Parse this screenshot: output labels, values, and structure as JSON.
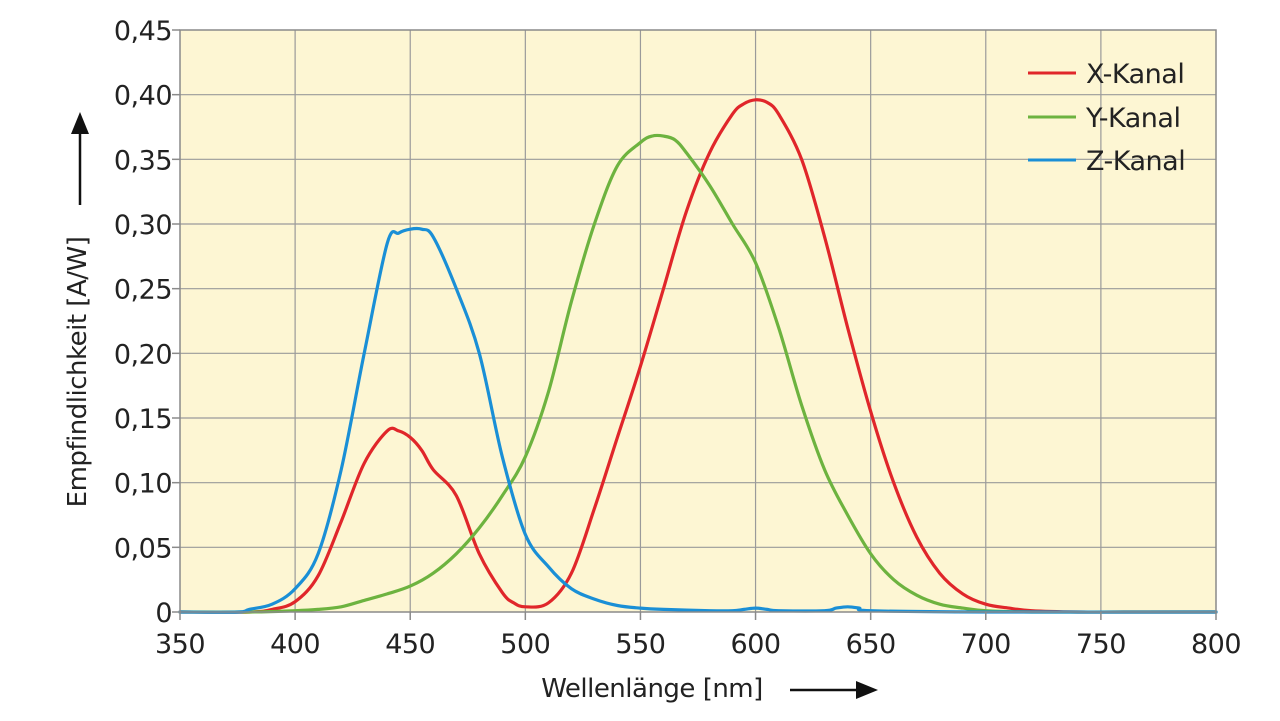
{
  "chart_data": {
    "type": "line",
    "title": "",
    "xlabel": "Wellenlänge [nm]",
    "ylabel": "Empfindlichkeit [A/W]",
    "xlim": [
      350,
      800
    ],
    "ylim": [
      0,
      0.45
    ],
    "x_ticks": [
      350,
      400,
      450,
      500,
      550,
      600,
      650,
      700,
      750,
      800
    ],
    "x_tick_labels": [
      "350",
      "400",
      "450",
      "500",
      "550",
      "600",
      "650",
      "700",
      "750",
      "800"
    ],
    "y_ticks": [
      0,
      0.05,
      0.1,
      0.15,
      0.2,
      0.25,
      0.3,
      0.35,
      0.4,
      0.45
    ],
    "y_tick_labels": [
      "0",
      "0,05",
      "0,10",
      "0,15",
      "0,20",
      "0,25",
      "0,30",
      "0,35",
      "0,40",
      "0,45"
    ],
    "grid": true,
    "background_color": "#fdf6d3",
    "grid_color": "#9a9a9a",
    "legend_position": "top-right",
    "series": [
      {
        "name": "X-Kanal",
        "color": "#e0262a",
        "x": [
          350,
          380,
          390,
          400,
          410,
          420,
          430,
          440,
          445,
          450,
          455,
          460,
          470,
          480,
          490,
          495,
          500,
          510,
          520,
          530,
          540,
          550,
          560,
          570,
          580,
          590,
          595,
          600,
          605,
          610,
          620,
          630,
          640,
          650,
          660,
          670,
          680,
          690,
          700,
          710,
          720,
          740,
          760,
          800
        ],
        "y": [
          0,
          0,
          0.002,
          0.008,
          0.028,
          0.07,
          0.115,
          0.14,
          0.14,
          0.135,
          0.125,
          0.11,
          0.09,
          0.045,
          0.015,
          0.007,
          0.004,
          0.007,
          0.03,
          0.08,
          0.135,
          0.19,
          0.25,
          0.31,
          0.355,
          0.385,
          0.393,
          0.396,
          0.394,
          0.385,
          0.35,
          0.29,
          0.22,
          0.155,
          0.1,
          0.058,
          0.03,
          0.014,
          0.006,
          0.003,
          0.001,
          0,
          0,
          0
        ]
      },
      {
        "name": "Y-Kanal",
        "color": "#6db33f",
        "x": [
          350,
          380,
          400,
          410,
          420,
          430,
          440,
          450,
          460,
          470,
          480,
          490,
          500,
          510,
          520,
          530,
          540,
          550,
          555,
          560,
          565,
          570,
          580,
          590,
          600,
          610,
          620,
          630,
          640,
          650,
          660,
          670,
          680,
          690,
          700,
          720,
          760,
          800
        ],
        "y": [
          0,
          0,
          0.001,
          0.002,
          0.004,
          0.009,
          0.014,
          0.02,
          0.03,
          0.045,
          0.065,
          0.09,
          0.12,
          0.17,
          0.24,
          0.3,
          0.345,
          0.363,
          0.368,
          0.368,
          0.365,
          0.355,
          0.33,
          0.3,
          0.27,
          0.22,
          0.16,
          0.11,
          0.075,
          0.045,
          0.025,
          0.013,
          0.006,
          0.003,
          0.001,
          0,
          0,
          0
        ]
      },
      {
        "name": "Z-Kanal",
        "color": "#1a8fd6",
        "x": [
          350,
          375,
          380,
          390,
          400,
          410,
          420,
          430,
          440,
          445,
          450,
          455,
          460,
          470,
          480,
          490,
          500,
          510,
          520,
          530,
          540,
          550,
          560,
          580,
          590,
          595,
          600,
          605,
          610,
          630,
          635,
          640,
          645,
          650,
          700,
          800
        ],
        "y": [
          0,
          0,
          0.002,
          0.006,
          0.018,
          0.045,
          0.11,
          0.2,
          0.285,
          0.293,
          0.296,
          0.296,
          0.29,
          0.25,
          0.2,
          0.12,
          0.06,
          0.035,
          0.018,
          0.01,
          0.005,
          0.003,
          0.002,
          0.001,
          0.001,
          0.002,
          0.003,
          0.002,
          0.001,
          0.001,
          0.003,
          0.004,
          0.003,
          0.001,
          0,
          0
        ]
      }
    ]
  }
}
